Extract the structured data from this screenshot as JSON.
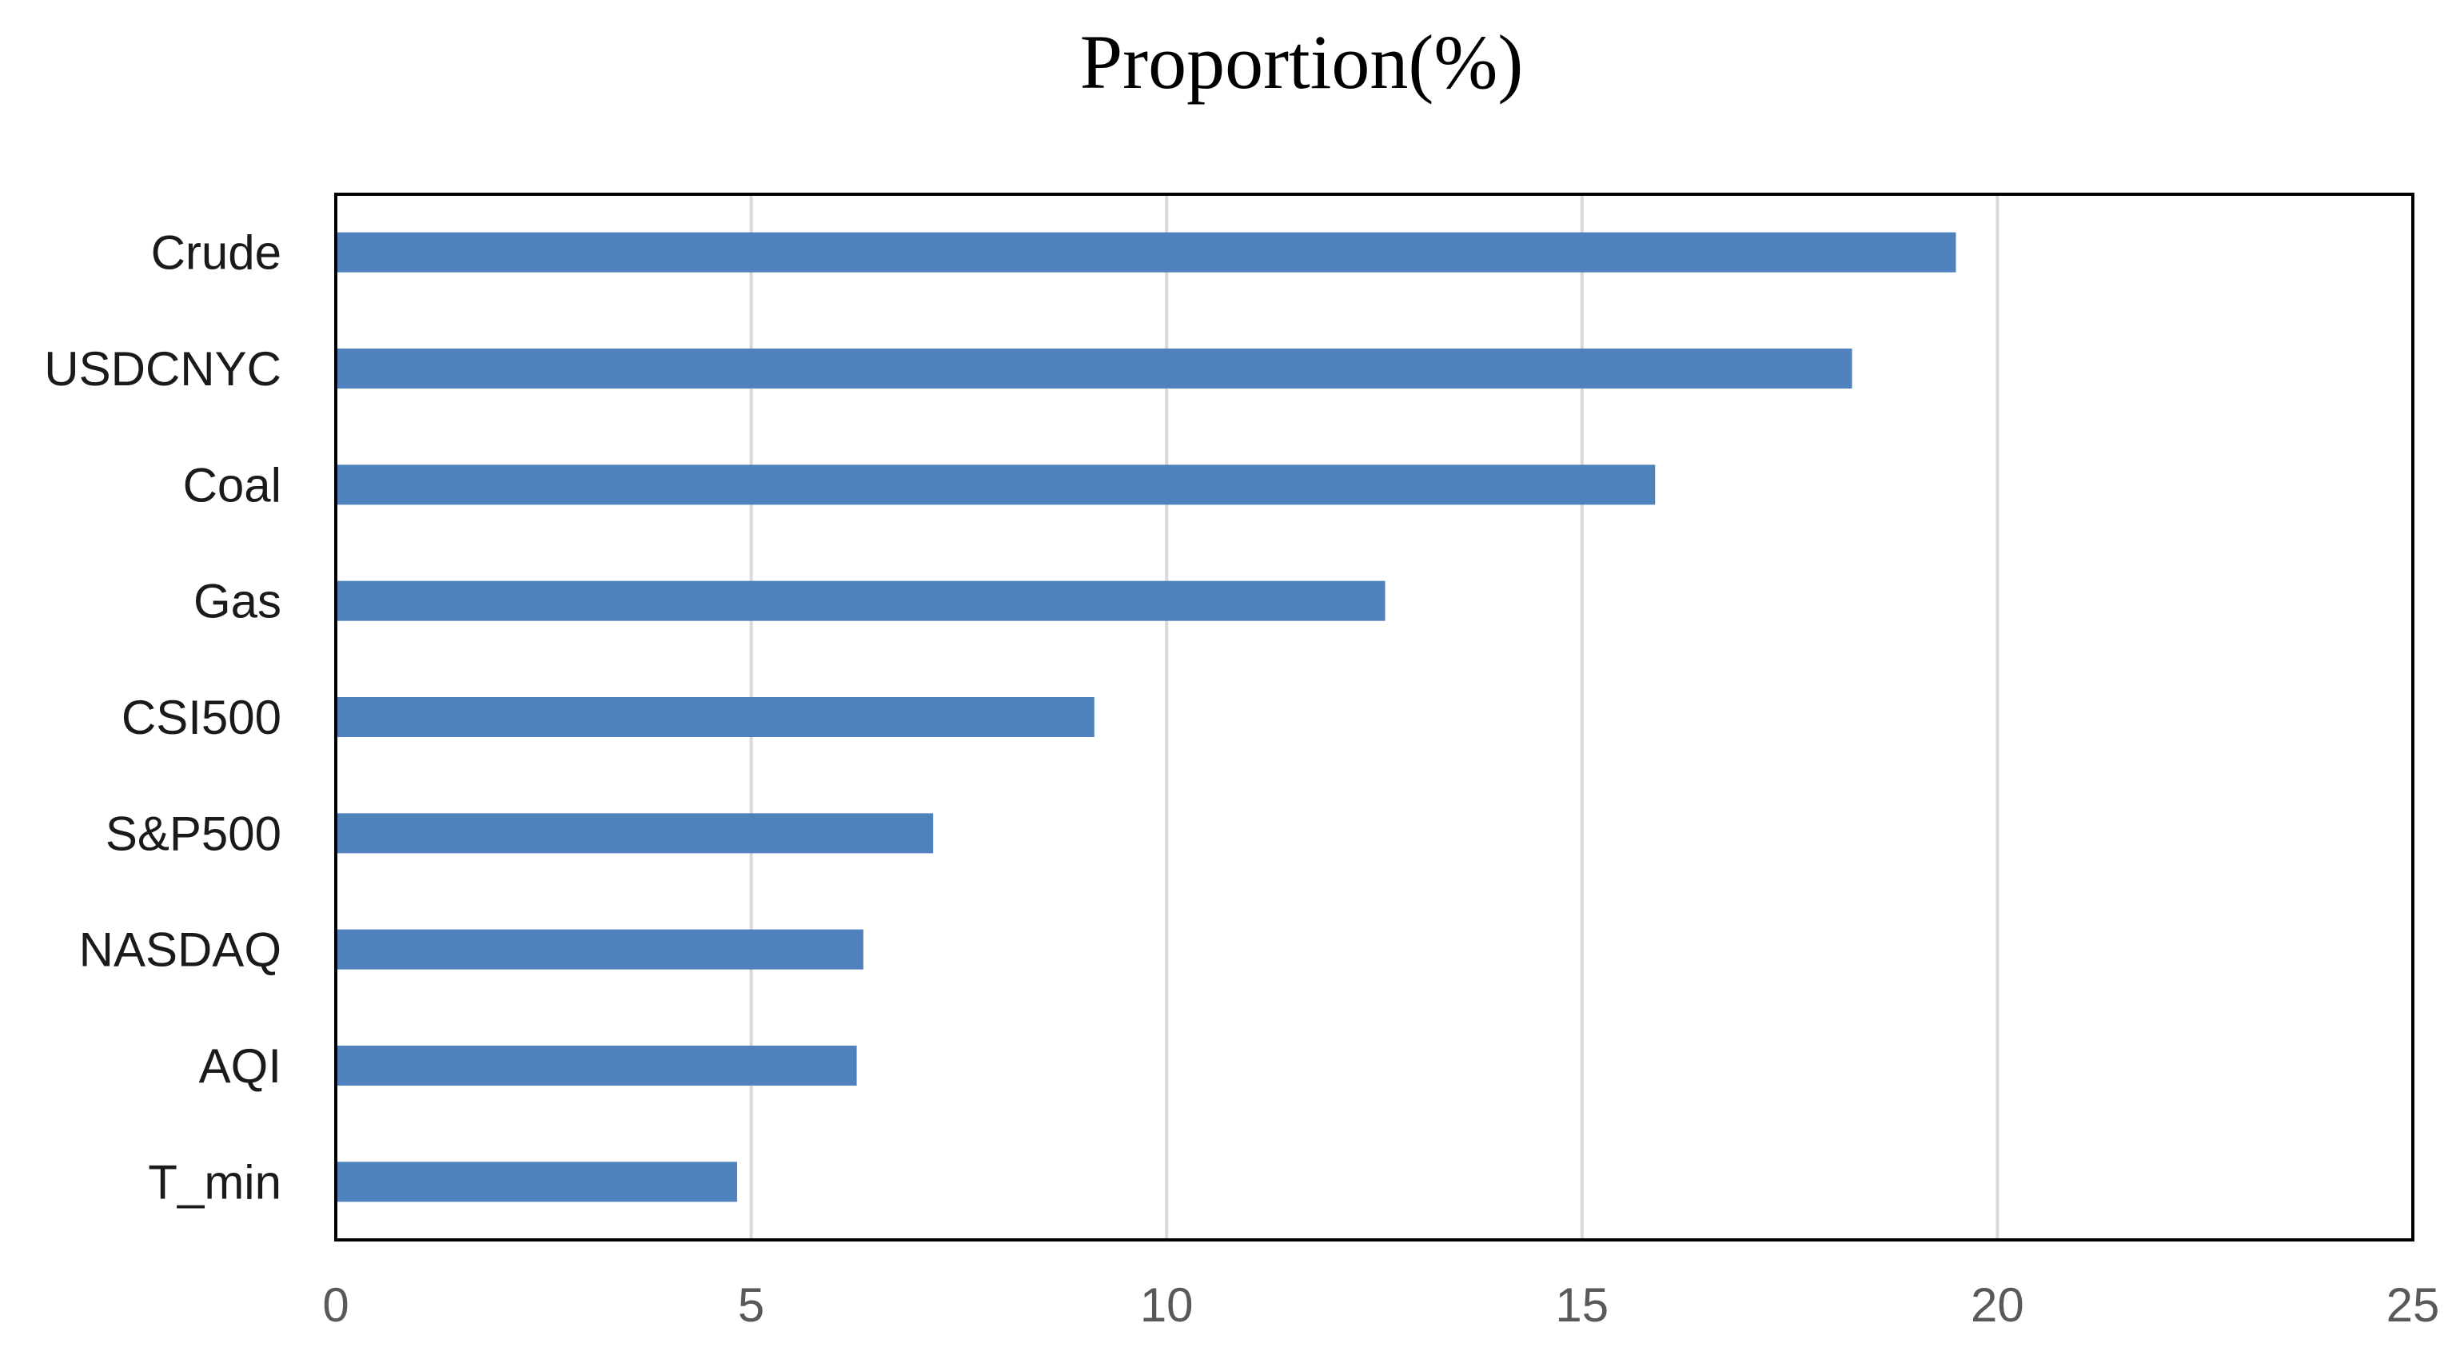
{
  "chart_data": {
    "type": "bar",
    "orientation": "horizontal",
    "title": "Proportion(%)",
    "xlabel": "",
    "ylabel": "",
    "categories": [
      "Crude",
      "USDCNYC",
      "Coal",
      "Gas",
      "CSI500",
      "S&P500",
      "NASDAQ",
      "AQI",
      "T_min"
    ],
    "values": [
      19.5,
      18.25,
      15.88,
      12.63,
      9.13,
      7.19,
      6.35,
      6.27,
      4.83
    ],
    "xlim": [
      0,
      25
    ],
    "xticks": [
      "0",
      "5",
      "10",
      "15",
      "20",
      "25"
    ],
    "grid": "vertical",
    "legend": "none",
    "bar_color": "#4F81BD",
    "grid_color": "#D9D9D9"
  }
}
